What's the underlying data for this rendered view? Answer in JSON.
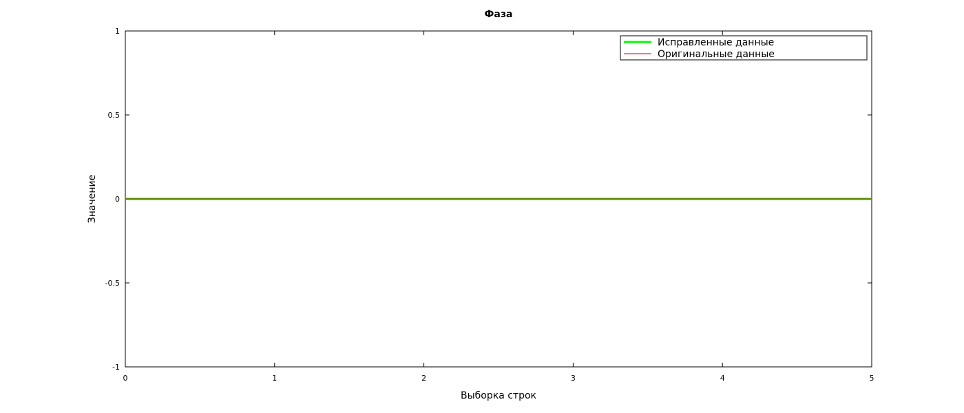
{
  "chart_data": {
    "type": "line",
    "title": "Фаза",
    "xlabel": "Выборка строк",
    "ylabel": "Значение",
    "xlim": [
      0,
      5
    ],
    "ylim": [
      -1,
      1
    ],
    "x_ticks": [
      "0",
      "1",
      "2",
      "3",
      "4",
      "5"
    ],
    "y_ticks": [
      "1",
      "0.5",
      "0",
      "-0.5",
      "-1"
    ],
    "grid": false,
    "legend_position": "top-right",
    "series": [
      {
        "name": "Исправленные данные",
        "color": "#00ff00",
        "x": [
          0,
          1,
          2,
          3,
          4,
          5
        ],
        "y": [
          0,
          0,
          0,
          0,
          0,
          0
        ]
      },
      {
        "name": "Оригинальные данные",
        "color": "#cc0000",
        "x": [
          0,
          1,
          2,
          3,
          4,
          5
        ],
        "y": [
          0,
          0,
          0,
          0,
          0,
          0
        ]
      }
    ]
  }
}
